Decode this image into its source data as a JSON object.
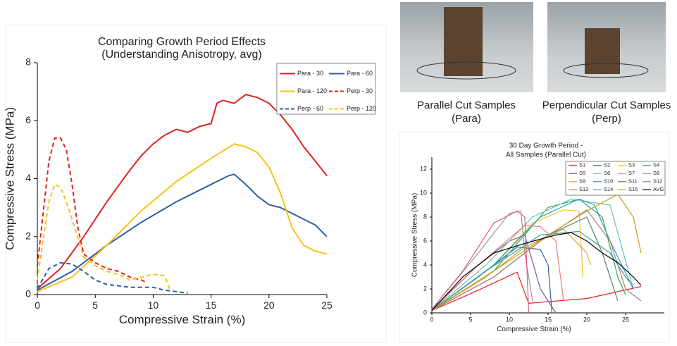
{
  "captions": {
    "parallel": [
      "Parallel Cut Samples",
      "(Para)"
    ],
    "perpendicular": [
      "Perpendicular Cut Samples",
      "(Perp)"
    ]
  },
  "chart_data": [
    {
      "type": "line",
      "title": "Comparing Growth Period Effects",
      "subtitle": "(Understanding Anisotropy, avg)",
      "x_label": "Compressive Strain (%)",
      "y_label": "Compressive Stress (MPa)",
      "xlim": [
        0,
        25
      ],
      "ylim": [
        0,
        8
      ],
      "xticks": [
        0,
        5,
        10,
        15,
        20,
        25
      ],
      "yticks": [
        0,
        2,
        4,
        6,
        8
      ],
      "series": [
        {
          "name": "Para - 30",
          "color": "#e02020",
          "linestyle": "solid",
          "x": [
            0,
            2,
            4,
            6,
            8,
            9,
            10,
            11,
            12,
            13,
            14,
            15,
            15.5,
            16,
            17,
            18,
            19,
            20,
            21,
            22,
            23,
            24,
            25
          ],
          "values": [
            0.2,
            0.9,
            2.0,
            3.2,
            4.3,
            4.8,
            5.2,
            5.5,
            5.7,
            5.6,
            5.8,
            5.9,
            6.6,
            6.7,
            6.6,
            6.9,
            6.8,
            6.6,
            6.2,
            5.7,
            5.1,
            4.6,
            4.1
          ]
        },
        {
          "name": "Para - 60",
          "color": "#2f5f9e",
          "linestyle": "solid",
          "x": [
            0,
            3,
            6,
            9,
            12,
            15,
            16.5,
            17,
            18,
            19,
            20,
            21,
            22,
            23,
            24,
            25
          ],
          "values": [
            0.15,
            0.8,
            1.7,
            2.5,
            3.2,
            3.8,
            4.1,
            4.15,
            3.8,
            3.4,
            3.1,
            3.0,
            2.8,
            2.6,
            2.4,
            2.0
          ]
        },
        {
          "name": "Para - 120",
          "color": "#f5c21a",
          "linestyle": "solid",
          "x": [
            0,
            3,
            6,
            9,
            12,
            15,
            17,
            18,
            19,
            20,
            21,
            22,
            23,
            24,
            25
          ],
          "values": [
            0.1,
            0.6,
            1.7,
            2.9,
            3.9,
            4.7,
            5.2,
            5.1,
            4.9,
            4.4,
            3.5,
            2.3,
            1.7,
            1.5,
            1.4
          ]
        },
        {
          "name": "Perp - 30",
          "color": "#e02020",
          "linestyle": "dashed",
          "x": [
            0,
            0.5,
            1,
            1.5,
            2,
            2.5,
            3,
            3.5,
            4,
            5,
            6,
            7,
            8,
            9,
            9.5
          ],
          "values": [
            1,
            2.8,
            4.6,
            5.4,
            5.4,
            5.0,
            3.8,
            2.3,
            1.4,
            1.1,
            0.9,
            0.8,
            0.6,
            0.5,
            0.4
          ]
        },
        {
          "name": "Perp - 60",
          "color": "#2f5f9e",
          "linestyle": "dashed",
          "x": [
            0,
            1,
            2,
            3,
            4,
            5,
            6,
            8,
            10,
            11,
            12,
            13
          ],
          "values": [
            0.2,
            0.9,
            1.1,
            1.05,
            0.8,
            0.5,
            0.35,
            0.25,
            0.25,
            0.15,
            0.1,
            0.05
          ]
        },
        {
          "name": "Perp - 120",
          "color": "#f5c21a",
          "linestyle": "dashed",
          "x": [
            0,
            0.5,
            1,
            1.5,
            2,
            2.5,
            3,
            4,
            5,
            6,
            7,
            8,
            9,
            10,
            11,
            11.5
          ],
          "values": [
            0.5,
            1.9,
            3.2,
            3.8,
            3.7,
            3.2,
            2.6,
            1.3,
            1.0,
            0.8,
            0.7,
            0.5,
            0.6,
            0.7,
            0.65,
            0.1
          ]
        }
      ]
    },
    {
      "type": "line",
      "title": "30 Day Growth Period -",
      "subtitle": "All Samples (Parallel Cut)",
      "x_label": "Compressive Strain (%)",
      "y_label": "Compressive Stress (MPa)",
      "xlim": [
        0,
        30
      ],
      "ylim": [
        0,
        13
      ],
      "xticks": [
        0,
        5,
        10,
        15,
        20,
        25
      ],
      "yticks": [
        0,
        2,
        4,
        6,
        8,
        10,
        12
      ],
      "series": [
        {
          "name": "S1",
          "color": "#e02020",
          "linestyle": "solid",
          "x": [
            0,
            5,
            11,
            12.5,
            20,
            27
          ],
          "values": [
            0.2,
            1.6,
            3.4,
            0.8,
            1.2,
            2.2
          ]
        },
        {
          "name": "S2",
          "color": "#2f5f9e",
          "linestyle": "solid",
          "x": [
            0,
            6,
            11,
            14,
            15,
            15.5
          ],
          "values": [
            0.2,
            3,
            5.5,
            5.3,
            4,
            0
          ]
        },
        {
          "name": "S3",
          "color": "#f5c21a",
          "linestyle": "solid",
          "x": [
            0,
            8,
            13,
            17,
            19,
            19.5
          ],
          "values": [
            0.2,
            4,
            7.5,
            8.6,
            8.5,
            3
          ]
        },
        {
          "name": "S4",
          "color": "#3aa655",
          "linestyle": "solid",
          "x": [
            0,
            8,
            15,
            19,
            22,
            24,
            25
          ],
          "values": [
            0.2,
            3.5,
            8.8,
            9.5,
            8,
            3,
            1.5
          ]
        },
        {
          "name": "S5",
          "color": "#7b55b0",
          "linestyle": "solid",
          "x": [
            0,
            6,
            10,
            12,
            14,
            15,
            16
          ],
          "values": [
            0.3,
            4,
            6,
            6.5,
            2,
            1,
            0
          ]
        },
        {
          "name": "S6",
          "color": "#6cc4b0",
          "linestyle": "solid",
          "x": [
            0,
            7,
            13,
            18,
            23,
            26
          ],
          "values": [
            0.2,
            4,
            8,
            9.5,
            9,
            2
          ]
        },
        {
          "name": "S7",
          "color": "#f08070",
          "linestyle": "solid",
          "x": [
            0,
            6,
            12,
            14,
            16,
            17
          ],
          "values": [
            0.2,
            4,
            7.3,
            7.2,
            6,
            1
          ]
        },
        {
          "name": "S8",
          "color": "#999999",
          "linestyle": "solid",
          "x": [
            0,
            6,
            10,
            11.5,
            12,
            13
          ],
          "values": [
            0.3,
            5,
            8.3,
            8.5,
            5,
            1
          ]
        },
        {
          "name": "S9",
          "color": "#e0a030",
          "linestyle": "solid",
          "x": [
            0,
            7,
            12,
            17,
            20,
            20.5
          ],
          "values": [
            0.2,
            3,
            5.5,
            7,
            5,
            4
          ]
        },
        {
          "name": "S10",
          "color": "#20a0c0",
          "linestyle": "solid",
          "x": [
            0,
            8,
            14,
            19,
            21,
            23,
            26
          ],
          "values": [
            0.2,
            4,
            8,
            9.5,
            9,
            6,
            2
          ]
        },
        {
          "name": "S11",
          "color": "#5a7a7a",
          "linestyle": "solid",
          "x": [
            0,
            8,
            15,
            20,
            22,
            24
          ],
          "values": [
            0.2,
            3,
            6.5,
            8,
            5,
            1
          ]
        },
        {
          "name": "S12",
          "color": "#b07a7a",
          "linestyle": "solid",
          "x": [
            0,
            8,
            14,
            20,
            23,
            25,
            27
          ],
          "values": [
            0.2,
            3,
            6,
            8.6,
            6,
            2,
            1
          ]
        },
        {
          "name": "S13",
          "color": "#e05a8a",
          "linestyle": "solid",
          "x": [
            0,
            4,
            8,
            11,
            12,
            12.5
          ],
          "values": [
            0.3,
            3.5,
            7.5,
            8.5,
            8,
            0
          ]
        },
        {
          "name": "S14",
          "color": "#3aa0a0",
          "linestyle": "solid",
          "x": [
            0,
            7,
            14,
            19,
            23,
            25,
            26
          ],
          "values": [
            0.2,
            3.5,
            6.5,
            6.8,
            5,
            3,
            2.2
          ]
        },
        {
          "name": "S15",
          "color": "#c8a010",
          "linestyle": "solid",
          "x": [
            0,
            8,
            15,
            20,
            24,
            26,
            27
          ],
          "values": [
            0.2,
            3.5,
            6.5,
            8.5,
            9.9,
            8,
            5
          ]
        },
        {
          "name": "AVG",
          "color": "#000000",
          "linestyle": "solid",
          "x": [
            0,
            4,
            8,
            12,
            16,
            18,
            20,
            22,
            24,
            26,
            27
          ],
          "values": [
            0.2,
            3,
            5,
            5.8,
            6.5,
            6.7,
            6,
            5,
            4.2,
            3,
            2.3
          ]
        }
      ]
    }
  ]
}
